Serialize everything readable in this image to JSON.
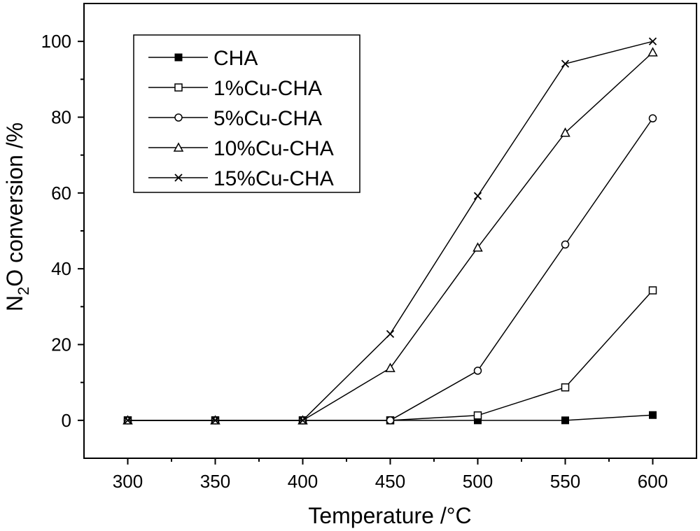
{
  "chart_data": {
    "type": "line",
    "xlabel": "Temperature /°C",
    "ylabel_main": "N",
    "ylabel_sub": "2",
    "ylabel_rest": "O conversion /%",
    "xlim": [
      275,
      625
    ],
    "ylim": [
      -10,
      110
    ],
    "x_ticks": [
      300,
      350,
      400,
      450,
      500,
      550,
      600
    ],
    "y_ticks": [
      0,
      20,
      40,
      60,
      80,
      100
    ],
    "x_tick_labels": [
      "300",
      "350",
      "400",
      "450",
      "500",
      "550",
      "600"
    ],
    "y_tick_labels": [
      "0",
      "20",
      "40",
      "60",
      "80",
      "100"
    ],
    "grid": false,
    "legend_position": "top-left",
    "x": [
      300,
      350,
      400,
      450,
      500,
      550,
      600
    ],
    "series": [
      {
        "name": "CHA",
        "marker": "filled-square",
        "values": [
          0,
          0,
          0,
          0,
          0,
          0,
          1.4
        ]
      },
      {
        "name": "1%Cu-CHA",
        "marker": "open-square",
        "values": [
          0,
          0,
          0,
          0,
          1.3,
          8.7,
          34.3
        ]
      },
      {
        "name": "5%Cu-CHA",
        "marker": "open-circle",
        "values": [
          0,
          0,
          0,
          0,
          13.1,
          46.4,
          79.7
        ]
      },
      {
        "name": "10%Cu-CHA",
        "marker": "open-triangle",
        "values": [
          0,
          0,
          0,
          13.8,
          45.6,
          75.9,
          97.1
        ]
      },
      {
        "name": "15%Cu-CHA",
        "marker": "cross",
        "values": [
          0,
          0,
          0,
          22.8,
          59.2,
          94.1,
          100
        ]
      }
    ]
  }
}
